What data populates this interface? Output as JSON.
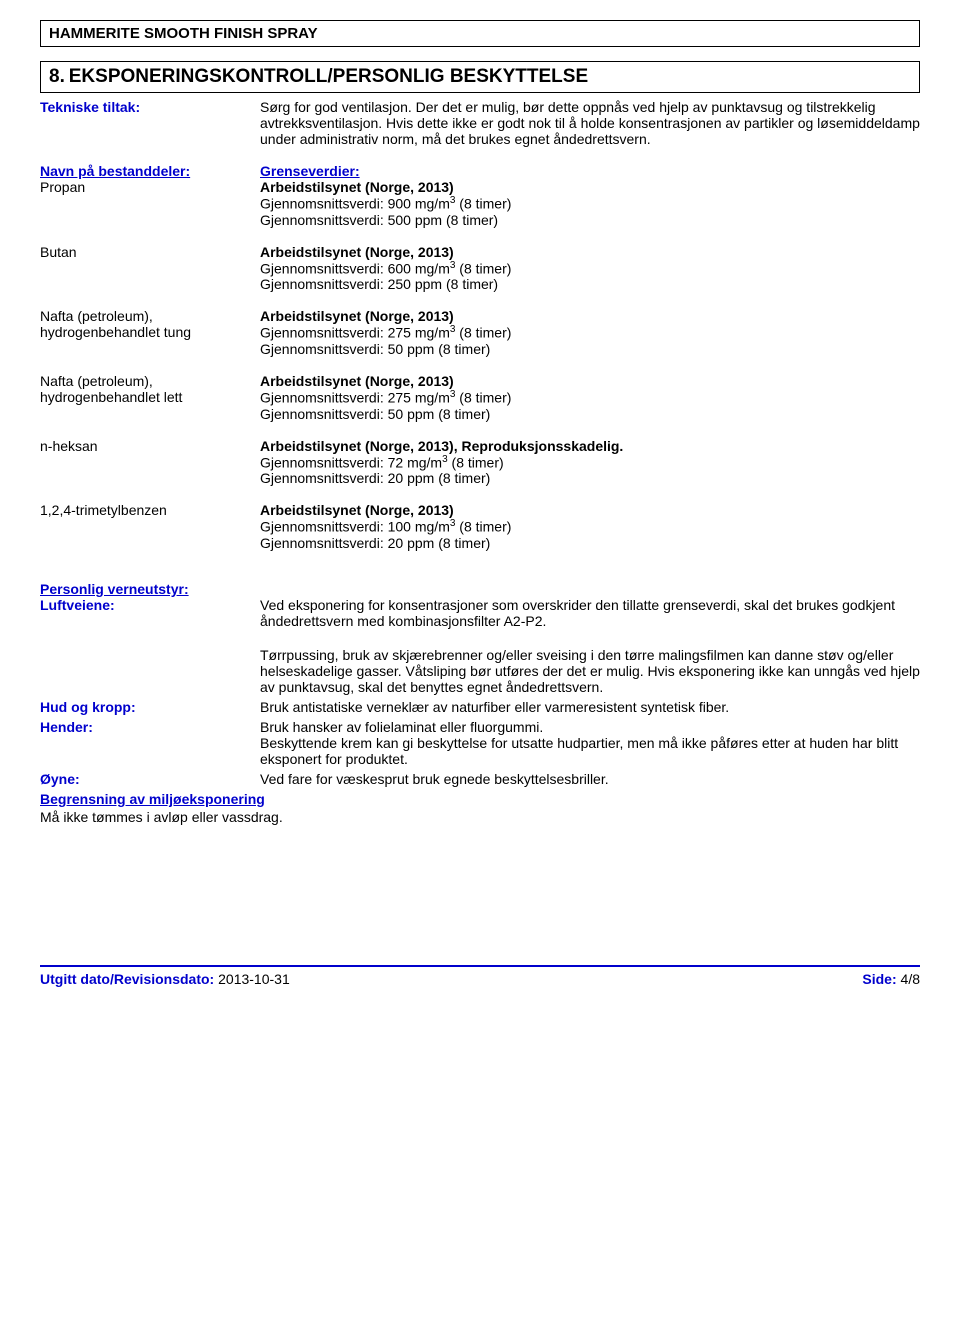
{
  "header": {
    "product": "HAMMERITE SMOOTH FINISH SPRAY"
  },
  "section": {
    "number": "8.",
    "title": "EKSPONERINGSKONTROLL/PERSONLIG BESKYTTELSE"
  },
  "tekniske": {
    "label": "Tekniske tiltak:",
    "text": "Sørg for god ventilasjon. Der det er mulig, bør dette oppnås ved hjelp av punktavsug og tilstrekkelig avtrekksventilasjon. Hvis dette ikke er godt nok til å holde konsentrasjonen av partikler og løsemiddeldamp under administrativ norm, må det brukes egnet åndedrettsvern."
  },
  "constituents": {
    "left_head": "Navn på bestanddeler:",
    "right_head": "Grenseverdier:",
    "items": [
      {
        "name": "Propan",
        "title": "Arbeidstilsynet (Norge, 2013)",
        "line1a": "Gjennomsnittsverdi:  900 mg/m",
        "line1b": " (8 timer)",
        "line2": "Gjennomsnittsverdi:  500 ppm (8 timer)"
      },
      {
        "name": "Butan",
        "title": "Arbeidstilsynet (Norge, 2013)",
        "line1a": "Gjennomsnittsverdi:  600 mg/m",
        "line1b": " (8 timer)",
        "line2": "Gjennomsnittsverdi:  250 ppm (8 timer)"
      },
      {
        "name": "Nafta (petroleum), hydrogenbehandlet tung",
        "title": "Arbeidstilsynet (Norge, 2013)",
        "line1a": "Gjennomsnittsverdi: 275 mg/m",
        "line1b": " (8 timer)",
        "line2": "Gjennomsnittsverdi:  50 ppm (8 timer)"
      },
      {
        "name": "Nafta (petroleum), hydrogenbehandlet lett",
        "title": "Arbeidstilsynet (Norge, 2013)",
        "line1a": "Gjennomsnittsverdi: 275 mg/m",
        "line1b": " (8 timer)",
        "line2": "Gjennomsnittsverdi:  50 ppm (8 timer)"
      },
      {
        "name": "n-heksan",
        "title": "Arbeidstilsynet (Norge, 2013), Reproduksjonsskadelig.",
        "line1a": "Gjennomsnittsverdi:  72 mg/m",
        "line1b": " (8 timer)",
        "line2": "Gjennomsnittsverdi:  20 ppm (8 timer)"
      },
      {
        "name": "1,2,4-trimetylbenzen",
        "title": "Arbeidstilsynet (Norge, 2013)",
        "line1a": "Gjennomsnittsverdi:  100 mg/m",
        "line1b": " (8 timer)",
        "line2": "Gjennomsnittsverdi:  20 ppm (8 timer)"
      }
    ]
  },
  "ppe": {
    "heading": "Personlig verneutstyr:",
    "luft_label": "Luftveiene:",
    "luft_text1": "Ved eksponering for konsentrasjoner som overskrider den tillatte grenseverdi, skal det brukes godkjent åndedrettsvern med kombinasjonsfilter A2-P2.",
    "luft_text2": "Tørrpussing, bruk av skjærebrenner og/eller sveising i den tørre malingsfilmen kan danne støv og/eller helseskadelige gasser. Våtsliping bør utføres der det er mulig. Hvis eksponering ikke kan unngås ved hjelp av punktavsug, skal det benyttes egnet åndedrettsvern.",
    "hud_label": "Hud og kropp:",
    "hud_text": "Bruk antistatiske verneklær av naturfiber eller varmeresistent syntetisk fiber.",
    "hender_label": "Hender:",
    "hender_text1": "Bruk hansker av folielaminat eller fluorgummi.",
    "hender_text2": "Beskyttende krem kan gi beskyttelse for utsatte hudpartier, men må ikke påføres etter at huden har blitt eksponert for produktet.",
    "oyne_label": "Øyne:",
    "oyne_text": "Ved fare for væskesprut bruk egnede beskyttelsesbriller.",
    "env_heading": "Begrensning av miljøeksponering",
    "env_text": "Må ikke tømmes i avløp eller vassdrag."
  },
  "footer": {
    "left_label": "Utgitt dato/Revisionsdato: ",
    "date": "2013-10-31",
    "right_label": "Side: ",
    "page": "4/8"
  }
}
